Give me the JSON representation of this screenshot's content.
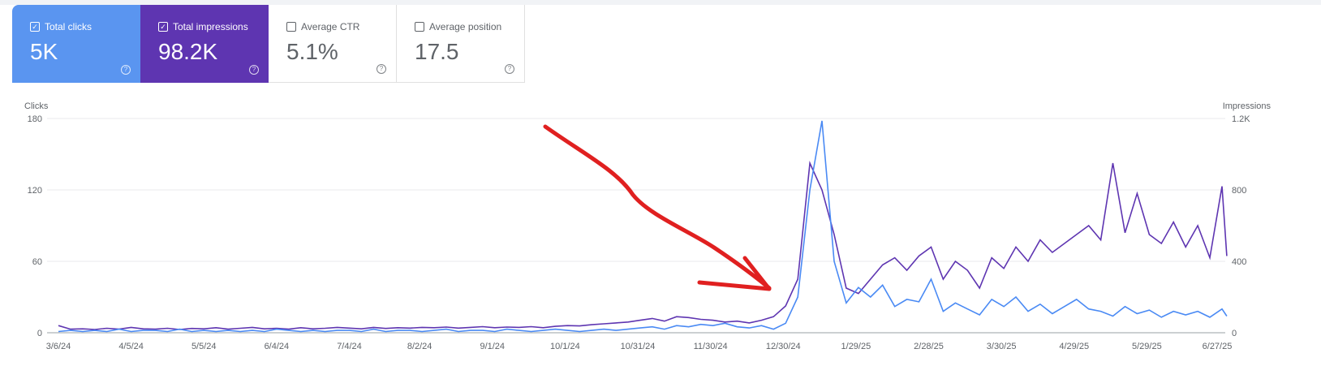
{
  "metrics": [
    {
      "label": "Total clicks",
      "value": "5K",
      "checked": true,
      "color": "#5a95f0"
    },
    {
      "label": "Total impressions",
      "value": "98.2K",
      "checked": true,
      "color": "#5e35b1"
    },
    {
      "label": "Average CTR",
      "value": "5.1%",
      "checked": false
    },
    {
      "label": "Average position",
      "value": "17.5",
      "checked": false
    }
  ],
  "chart_data": {
    "type": "line",
    "left_axis": {
      "label": "Clicks",
      "ticks": [
        "0",
        "60",
        "120",
        "180"
      ],
      "range": [
        0,
        180
      ]
    },
    "right_axis": {
      "label": "Impressions",
      "ticks": [
        "0",
        "400",
        "800",
        "1.2K"
      ],
      "range": [
        0,
        1200
      ]
    },
    "x_tick_labels": [
      "3/6/24",
      "4/5/24",
      "5/5/24",
      "6/4/24",
      "7/4/24",
      "8/2/24",
      "9/1/24",
      "10/1/24",
      "10/31/24",
      "11/30/24",
      "12/30/24",
      "1/29/25",
      "2/28/25",
      "3/30/25",
      "4/29/25",
      "5/29/25",
      "6/27/25"
    ],
    "x": [
      "3/6/24",
      "3/11/24",
      "3/16/24",
      "3/21/24",
      "3/26/24",
      "3/31/24",
      "4/5/24",
      "4/10/24",
      "4/15/24",
      "4/20/24",
      "4/25/24",
      "4/30/24",
      "5/5/24",
      "5/10/24",
      "5/15/24",
      "5/20/24",
      "5/25/24",
      "5/30/24",
      "6/4/24",
      "6/9/24",
      "6/14/24",
      "6/19/24",
      "6/24/24",
      "6/29/24",
      "7/4/24",
      "7/9/24",
      "7/14/24",
      "7/19/24",
      "7/24/24",
      "7/29/24",
      "8/3/24",
      "8/8/24",
      "8/13/24",
      "8/18/24",
      "8/23/24",
      "8/28/24",
      "9/2/24",
      "9/7/24",
      "9/12/24",
      "9/17/24",
      "9/22/24",
      "9/27/24",
      "10/2/24",
      "10/7/24",
      "10/12/24",
      "10/17/24",
      "10/22/24",
      "10/27/24",
      "11/1/24",
      "11/6/24",
      "11/11/24",
      "11/16/24",
      "11/21/24",
      "11/26/24",
      "12/1/24",
      "12/6/24",
      "12/11/24",
      "12/16/24",
      "12/21/24",
      "12/26/24",
      "12/31/24",
      "1/5/25",
      "1/10/25",
      "1/15/25",
      "1/20/25",
      "1/25/25",
      "1/30/25",
      "2/4/25",
      "2/9/25",
      "2/14/25",
      "2/19/25",
      "2/24/25",
      "3/1/25",
      "3/6/25",
      "3/11/25",
      "3/16/25",
      "3/21/25",
      "3/26/25",
      "3/31/25",
      "4/5/25",
      "4/10/25",
      "4/15/25",
      "4/20/25",
      "4/25/25",
      "4/30/25",
      "5/5/25",
      "5/10/25",
      "5/15/25",
      "5/20/25",
      "5/25/25",
      "5/30/25",
      "6/4/25",
      "6/9/25",
      "6/14/25",
      "6/19/25",
      "6/24/25",
      "6/29/25",
      "7/1/25"
    ],
    "series": [
      {
        "name": "Clicks",
        "axis": "left",
        "color": "#4a8af4",
        "values": [
          1,
          2,
          1,
          2,
          1,
          3,
          1,
          2,
          2,
          1,
          3,
          1,
          2,
          1,
          2,
          1,
          2,
          1,
          3,
          2,
          1,
          2,
          1,
          2,
          2,
          1,
          3,
          1,
          2,
          2,
          1,
          2,
          3,
          1,
          2,
          2,
          1,
          3,
          2,
          1,
          2,
          3,
          2,
          1,
          2,
          3,
          2,
          3,
          4,
          5,
          3,
          6,
          5,
          7,
          6,
          8,
          5,
          4,
          6,
          3,
          8,
          30,
          120,
          178,
          60,
          25,
          38,
          30,
          40,
          22,
          28,
          26,
          45,
          18,
          25,
          20,
          15,
          28,
          22,
          30,
          18,
          24,
          16,
          22,
          28,
          20,
          18,
          14,
          22,
          16,
          19,
          13,
          18,
          15,
          18,
          13,
          20,
          14
        ]
      },
      {
        "name": "Impressions",
        "axis": "right",
        "color": "#5e35b1",
        "values": [
          40,
          20,
          22,
          18,
          25,
          20,
          30,
          22,
          20,
          25,
          18,
          24,
          22,
          28,
          20,
          25,
          30,
          22,
          25,
          20,
          28,
          22,
          25,
          30,
          26,
          22,
          30,
          24,
          28,
          26,
          30,
          28,
          32,
          26,
          30,
          34,
          28,
          32,
          30,
          34,
          28,
          36,
          40,
          38,
          45,
          50,
          55,
          60,
          70,
          80,
          65,
          90,
          85,
          75,
          70,
          60,
          65,
          55,
          70,
          90,
          150,
          300,
          950,
          800,
          550,
          250,
          220,
          300,
          380,
          420,
          350,
          430,
          480,
          300,
          400,
          350,
          250,
          420,
          360,
          480,
          400,
          520,
          450,
          500,
          550,
          600,
          520,
          950,
          560,
          780,
          550,
          500,
          620,
          480,
          600,
          420,
          820,
          430
        ]
      }
    ],
    "grid": true,
    "annotation": "red hand-drawn arrow pointing to traffic increase"
  }
}
